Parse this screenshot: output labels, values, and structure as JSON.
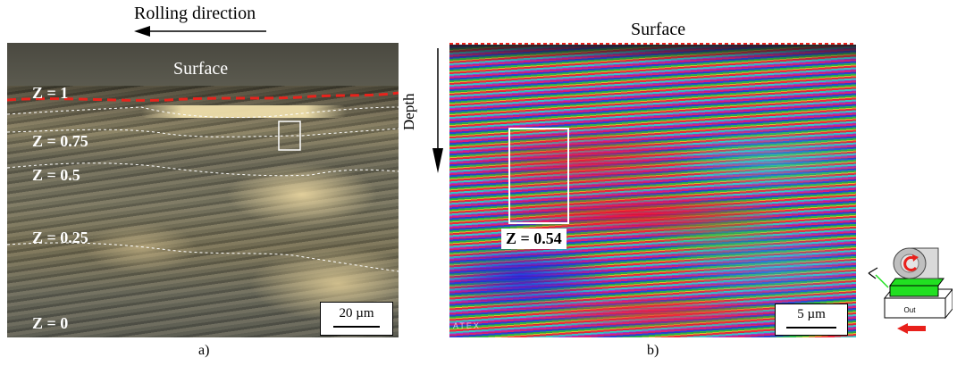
{
  "panel_a": {
    "rolling_direction_label": "Rolling direction",
    "surface_label": "Surface",
    "z_labels": [
      "Z = 1",
      "Z = 0.75",
      "Z = 0.5",
      "Z = 0.25",
      "Z = 0"
    ],
    "scale_label": "20 µm",
    "caption": "a)"
  },
  "panel_b": {
    "surface_label": "Surface",
    "depth_label": "Depth",
    "z_label": "Z = 0.54",
    "watermark": "ATEX",
    "scale_label": "5 µm",
    "caption": "b)"
  },
  "schematic": {
    "out_label": "Out"
  },
  "colors": {
    "interface_line": "#e8231c",
    "surface_dashed_b": "#e8231c",
    "arrow_red": "#e8201b",
    "green_sample": "#21e021"
  }
}
